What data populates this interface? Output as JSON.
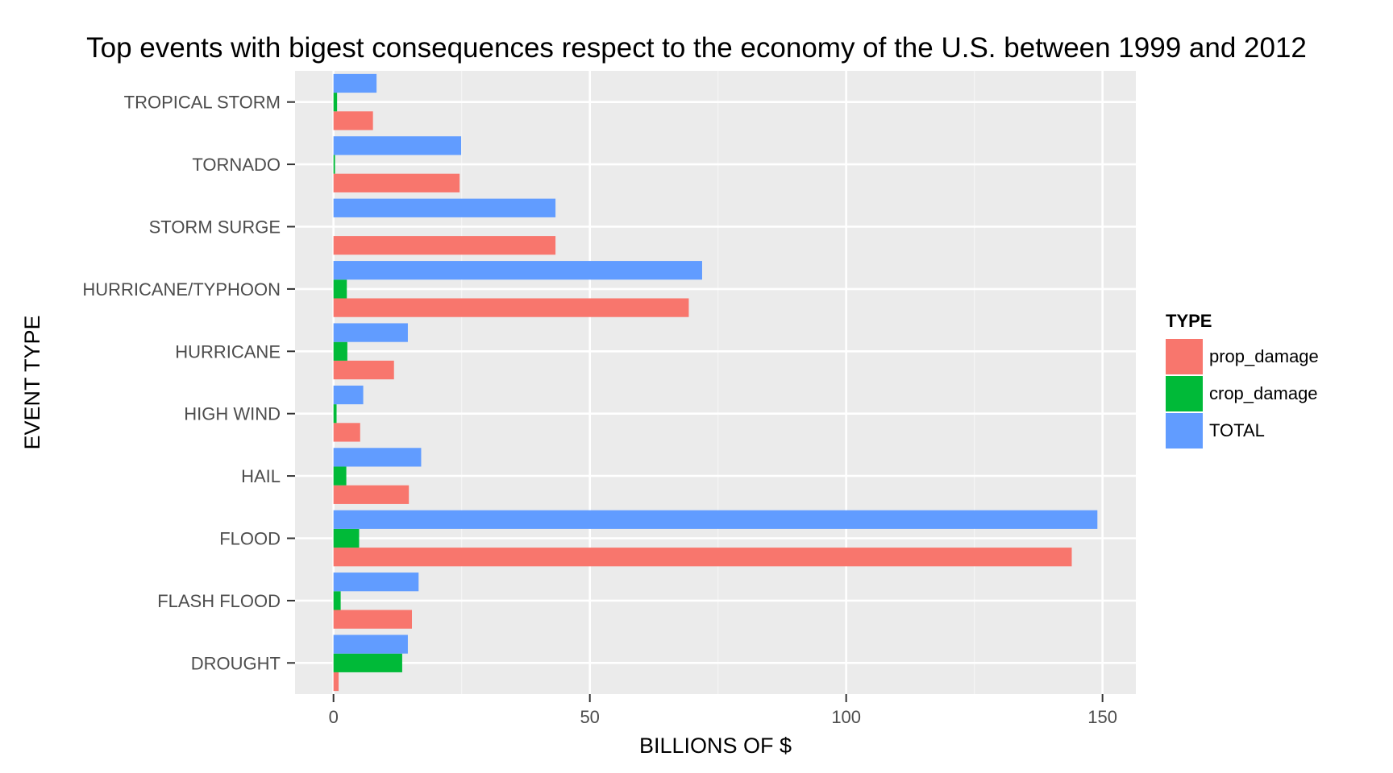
{
  "chart_data": {
    "type": "bar",
    "orientation": "horizontal",
    "title": "Top events with bigest consequences respect to the economy of the U.S. between 1999 and 2012",
    "xlabel": "BILLIONS OF $",
    "ylabel": "EVENT TYPE",
    "categories": [
      "DROUGHT",
      "FLASH FLOOD",
      "FLOOD",
      "HAIL",
      "HIGH WIND",
      "HURRICANE",
      "HURRICANE/TYPHOON",
      "STORM SURGE",
      "TORNADO",
      "TROPICAL STORM"
    ],
    "series": [
      {
        "name": "prop_damage",
        "color": "#F8766D",
        "values": [
          1.0,
          15.3,
          144.0,
          14.7,
          5.2,
          11.8,
          69.3,
          43.3,
          24.6,
          7.7
        ]
      },
      {
        "name": "crop_damage",
        "color": "#00BA38",
        "values": [
          13.4,
          1.4,
          5.0,
          2.5,
          0.6,
          2.7,
          2.6,
          0.0,
          0.3,
          0.7
        ]
      },
      {
        "name": "TOTAL",
        "color": "#619CFF",
        "values": [
          14.5,
          16.6,
          149.0,
          17.1,
          5.8,
          14.5,
          71.9,
          43.3,
          24.9,
          8.4
        ]
      }
    ],
    "xlim": [
      -7.5,
      156.5
    ],
    "xticks": [
      0,
      50,
      100,
      150
    ],
    "grid": true,
    "legend": {
      "title": "TYPE",
      "position": "right"
    }
  }
}
